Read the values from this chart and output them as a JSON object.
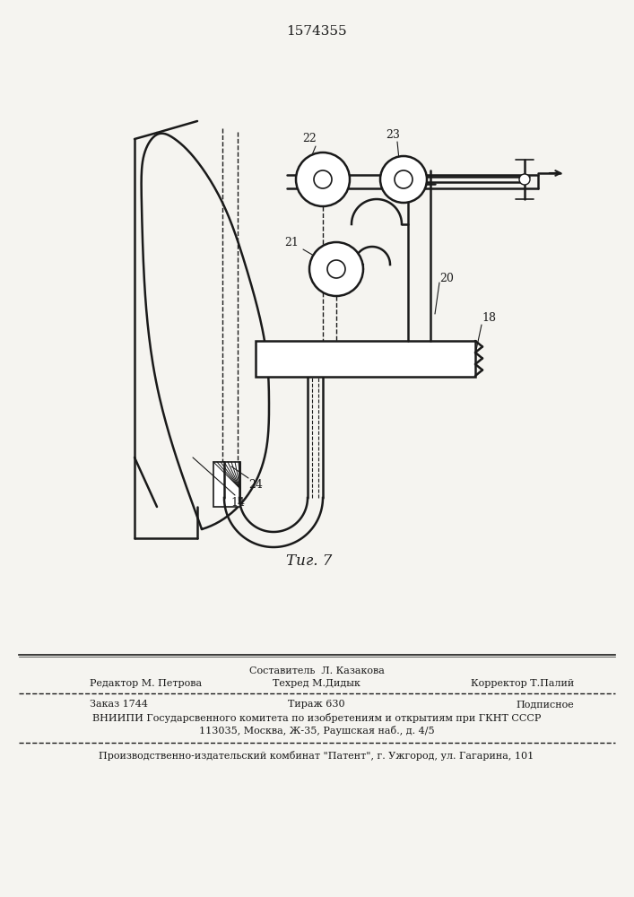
{
  "patent_number": "1574355",
  "fig_label": "Τиг. 7",
  "bg_color": "#f5f4f0",
  "line_color": "#1a1a1a",
  "footer_line1_center": "Составитель  Л. Казакова",
  "footer_line2_left": "Редактор М. Петрова",
  "footer_line2_center": "Техред М.Дидык",
  "footer_line2_right": "Корректор Т.Палий",
  "footer_line3_left": "Заказ 1744",
  "footer_line3_center": "Тираж 630",
  "footer_line3_right": "Подписное",
  "footer_line4": "ВНИИПИ Государсвенного комитета по изобретениям и открытиям при ГКНТ СССР",
  "footer_line5": "113035, Москва, Ж-35, Раушская наб., д. 4/5",
  "footer_line6": "Производственно-издательский комбинат \"Патент\", г. Ужгород, ул. Гагарина, 101"
}
